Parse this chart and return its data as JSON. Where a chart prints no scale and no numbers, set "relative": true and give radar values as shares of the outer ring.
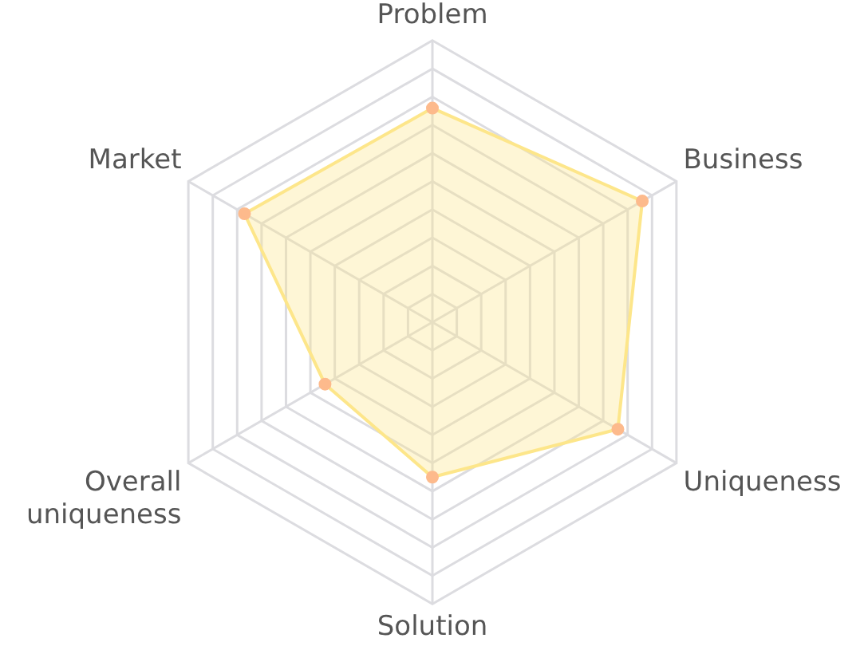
{
  "chart_data": {
    "type": "radar",
    "relative": true,
    "grid": true,
    "marker": "circle",
    "legend": false,
    "categories": [
      "Problem",
      "Business",
      "Uniqueness",
      "Solution",
      "Overall uniqueness",
      "Market"
    ],
    "series": [
      {
        "color": "#fde68a",
        "values": [
          0.76,
          0.86,
          0.76,
          0.55,
          0.44,
          0.77
        ]
      }
    ]
  }
}
